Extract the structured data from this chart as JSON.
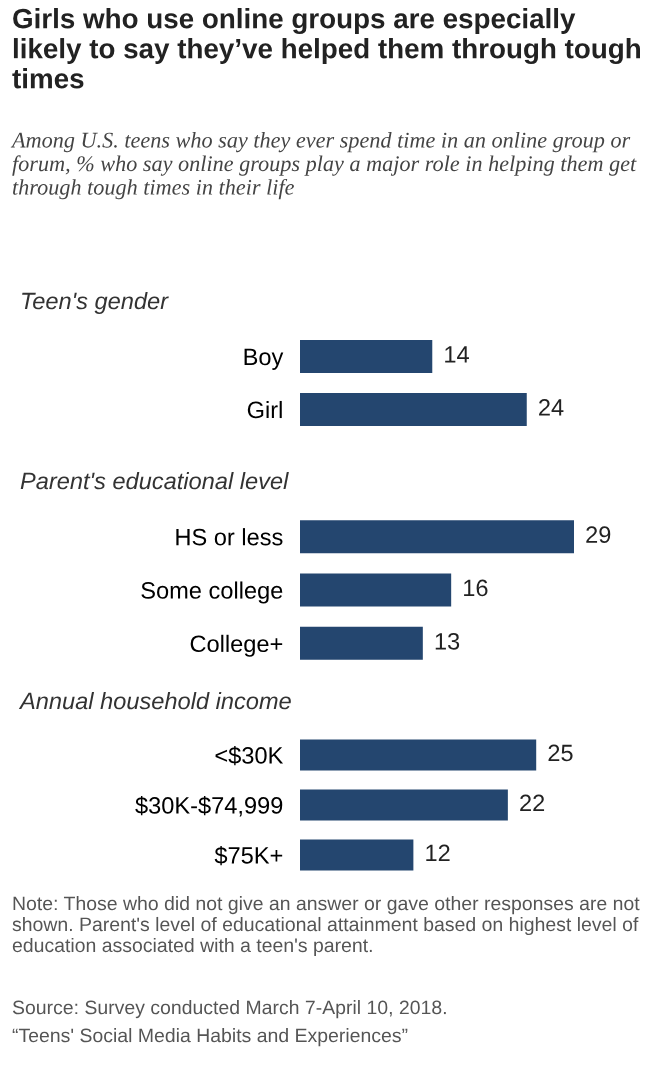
{
  "chart_data": [
    {
      "type": "bar",
      "orientation": "horizontal",
      "title": "Girls who use online groups are especially likely to say they’ve helped them through tough times",
      "subtitle": "Among U.S. teens who say they ever spend time in an online group or forum, % who say online groups play a major role in helping them get through tough times in their life",
      "ylabel": "Teen's gender",
      "categories": [
        "Boy",
        "Girl"
      ],
      "values": [
        14,
        24
      ],
      "color": "#24466f",
      "data_labels": true,
      "tick_labels": "y"
    },
    {
      "type": "bar",
      "orientation": "horizontal",
      "ylabel": "Parent's educational level",
      "categories": [
        "HS or less",
        "Some college",
        "College+"
      ],
      "values": [
        29,
        16,
        13
      ],
      "color": "#24466f",
      "data_labels": true,
      "tick_labels": "y"
    },
    {
      "type": "bar",
      "orientation": "horizontal",
      "ylabel": "Annual household income",
      "categories": [
        "<$30K",
        "$30K-$74,999",
        "$75K+"
      ],
      "values": [
        25,
        22,
        12
      ],
      "color": "#24466f",
      "data_labels": true,
      "tick_labels": "y",
      "annotations": [
        "Note: Those who did not give an answer or gave other responses are not shown. Parent's level of educational attainment based on highest level of education associated with a teen's parent.",
        "Source: Survey conducted March 7-April 10, 2018.",
        "“Teens' Social Media Habits and Experiences”"
      ]
    }
  ]
}
